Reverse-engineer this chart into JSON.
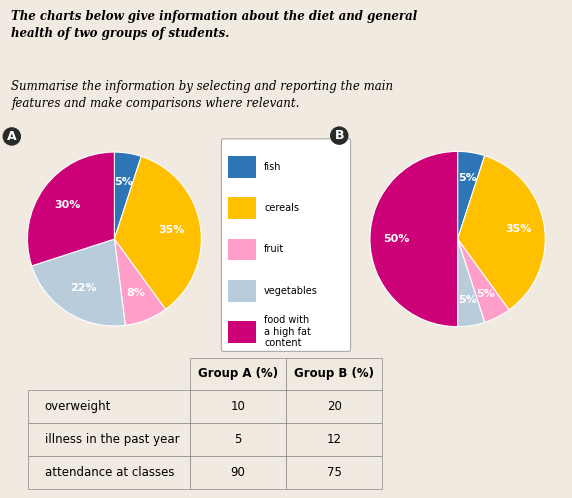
{
  "title_bold": "The charts below give information about the diet and general\nhealth of two groups of students.",
  "subtitle": "Summarise the information by selecting and reporting the main\nfeatures and make comparisons where relevant.",
  "pie_A": {
    "label": "A",
    "values": [
      5,
      35,
      8,
      22,
      30
    ],
    "colors": [
      "#2E75B6",
      "#FFC000",
      "#FF9EC8",
      "#B8CCDC",
      "#CC0077"
    ],
    "labels_pct": [
      "5%",
      "35%",
      "8%",
      "22%",
      "30%"
    ],
    "startangle": 90
  },
  "pie_B": {
    "label": "B",
    "values": [
      5,
      35,
      5,
      5,
      50
    ],
    "colors": [
      "#2E75B6",
      "#FFC000",
      "#FF9EC8",
      "#B8CCDC",
      "#CC0077"
    ],
    "labels_pct": [
      "5%",
      "35%",
      "5%",
      "5%",
      "50%"
    ],
    "startangle": 90
  },
  "legend_items": [
    "fish",
    "cereals",
    "fruit",
    "vegetables",
    "food with\na high fat\ncontent"
  ],
  "legend_colors": [
    "#2E75B6",
    "#FFC000",
    "#FF9EC8",
    "#B8CCDC",
    "#CC0077"
  ],
  "table_row_labels": [
    "overweight",
    "illness in the past year",
    "attendance at classes"
  ],
  "table_col_labels": [
    "Group A (%)",
    "Group B (%)"
  ],
  "table_values": [
    [
      "10",
      "20"
    ],
    [
      "5",
      "12"
    ],
    [
      "90",
      "75"
    ]
  ],
  "bg_color": "#F0EAE0"
}
